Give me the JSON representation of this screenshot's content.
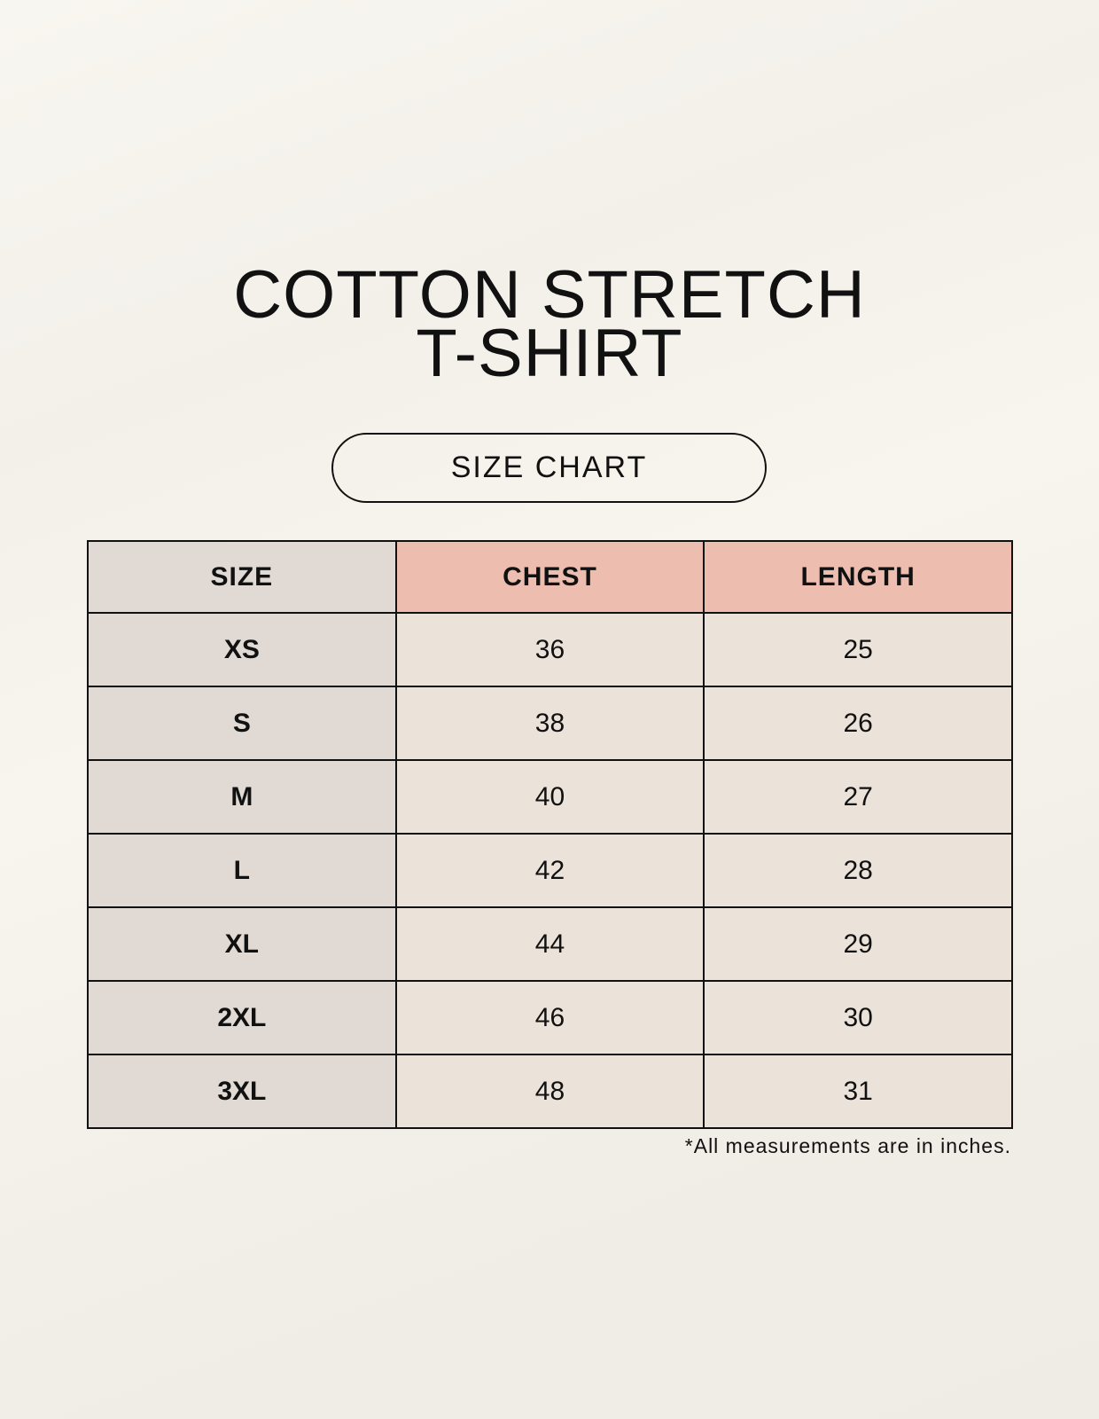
{
  "title": {
    "line1": "COTTON STRETCH",
    "line2": "T-SHIRT"
  },
  "badge": "SIZE CHART",
  "table": {
    "headers": [
      "SIZE",
      "CHEST",
      "LENGTH"
    ],
    "rows": [
      [
        "XS",
        "36",
        "25"
      ],
      [
        "S",
        "38",
        "26"
      ],
      [
        "M",
        "40",
        "27"
      ],
      [
        "L",
        "42",
        "28"
      ],
      [
        "XL",
        "44",
        "29"
      ],
      [
        "2XL",
        "46",
        "30"
      ],
      [
        "3XL",
        "48",
        "31"
      ]
    ]
  },
  "footnote": "*All measurements are in inches.",
  "colors": {
    "size_column": "#e0d9d4",
    "header_accent": "#edbdb0",
    "value_cells": "#ebe3d9"
  }
}
